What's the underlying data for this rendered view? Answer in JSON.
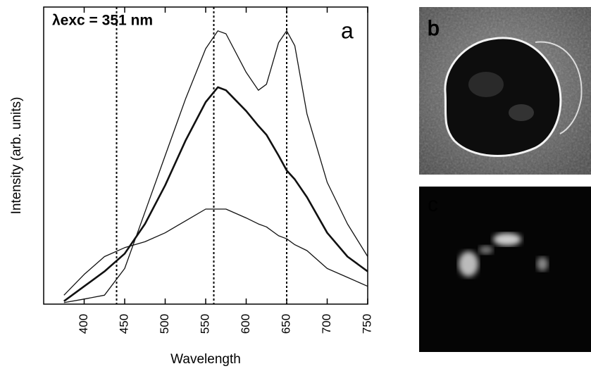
{
  "chart_data": {
    "type": "line",
    "annotation": "λexc = 351 nm",
    "panel_label": "a",
    "xlabel": "Wavelength",
    "ylabel": "Intensity (arb. units)",
    "x": [
      375,
      400,
      425,
      450,
      475,
      500,
      525,
      550,
      565,
      575,
      600,
      615,
      625,
      640,
      650,
      660,
      675,
      700,
      725,
      750
    ],
    "series": [
      {
        "color": "#111111",
        "width": 1.3,
        "values": [
          0.5,
          1.7,
          3,
          12,
          31,
          50,
          69,
          86,
          92,
          91,
          78,
          72,
          74,
          88,
          92,
          87,
          64,
          41,
          27,
          16
        ]
      },
      {
        "color": "#111111",
        "width": 2.6,
        "values": [
          1,
          6,
          11,
          17,
          27,
          40,
          55,
          68,
          73,
          72,
          65,
          60,
          57,
          50,
          45,
          42,
          36,
          24,
          16,
          11
        ]
      },
      {
        "color": "#111111",
        "width": 1.3,
        "values": [
          3,
          10,
          16,
          19,
          21,
          24,
          28,
          32,
          32,
          32,
          29,
          27,
          26,
          23,
          22,
          20,
          18,
          12,
          9,
          6
        ]
      }
    ],
    "vlines": [
      440,
      560,
      650
    ],
    "xlim": [
      350,
      750
    ],
    "xticks": [
      400,
      450,
      500,
      550,
      600,
      650,
      700,
      750
    ],
    "ylim": [
      0,
      100
    ]
  },
  "panel_labels": [
    "b",
    "c"
  ]
}
